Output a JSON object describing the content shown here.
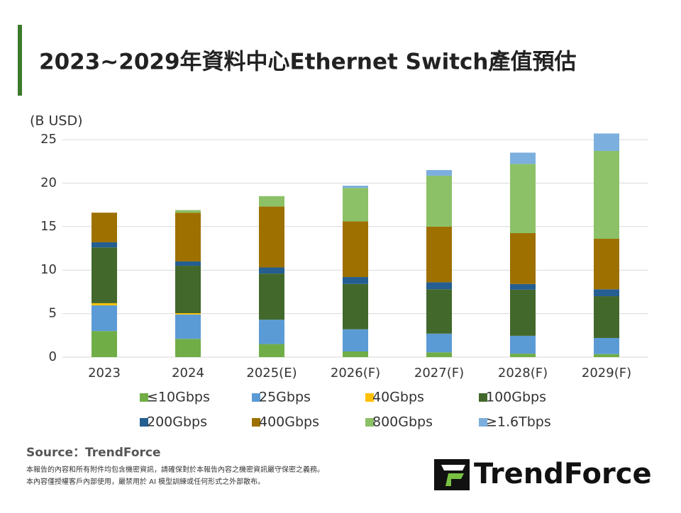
{
  "chart_data": {
    "type": "stacked_bar",
    "title": "2023~2029年資料中心Ethernet Switch產值預估",
    "y_label": "(B USD)",
    "categories": [
      "2023",
      "2024",
      "2025(E)",
      "2026(F)",
      "2027(F)",
      "2028(F)",
      "2029(F)"
    ],
    "series": [
      {
        "name": "≤10Gbps",
        "color": "#70ad47",
        "values": [
          3.0,
          2.1,
          1.5,
          0.65,
          0.55,
          0.4,
          0.35
        ]
      },
      {
        "name": "25Gbps",
        "color": "#5b9bd5",
        "values": [
          2.95,
          2.8,
          2.8,
          2.55,
          2.15,
          2.05,
          1.85
        ]
      },
      {
        "name": "40Gbps",
        "color": "#ffc000",
        "values": [
          0.25,
          0.15,
          0,
          0,
          0,
          0,
          0
        ]
      },
      {
        "name": "100Gbps",
        "color": "#43682b",
        "values": [
          6.4,
          5.45,
          5.3,
          5.2,
          5.1,
          5.3,
          4.8
        ]
      },
      {
        "name": "200Gbps",
        "color": "#255e91",
        "values": [
          0.6,
          0.5,
          0.7,
          0.8,
          0.8,
          0.65,
          0.8
        ]
      },
      {
        "name": "400Gbps",
        "color": "#9e7000",
        "values": [
          3.4,
          5.6,
          7.0,
          6.4,
          6.4,
          5.85,
          5.8
        ]
      },
      {
        "name": "800Gbps",
        "color": "#8cc168",
        "values": [
          0,
          0.3,
          1.2,
          3.85,
          5.85,
          7.95,
          10.1
        ]
      },
      {
        "name": "≥1.6Tbps",
        "color": "#7cafdd",
        "values": [
          0,
          0,
          0,
          0.25,
          0.65,
          1.3,
          2.0
        ]
      }
    ],
    "ylim": [
      0,
      25
    ],
    "yticks": [
      0,
      5,
      10,
      15,
      20,
      25
    ],
    "grid": true,
    "source": "Source：TrendForce",
    "notes": [
      "本報告的內容和所有附件均包含機密資訊，請確保對於本報告內容之機密資訊嚴守保密之義務。",
      "本內容僅授權客戶內部使用，嚴禁用於 AI 模型訓練或任何形式之外部散布。"
    ],
    "logo": "TrendForce"
  }
}
